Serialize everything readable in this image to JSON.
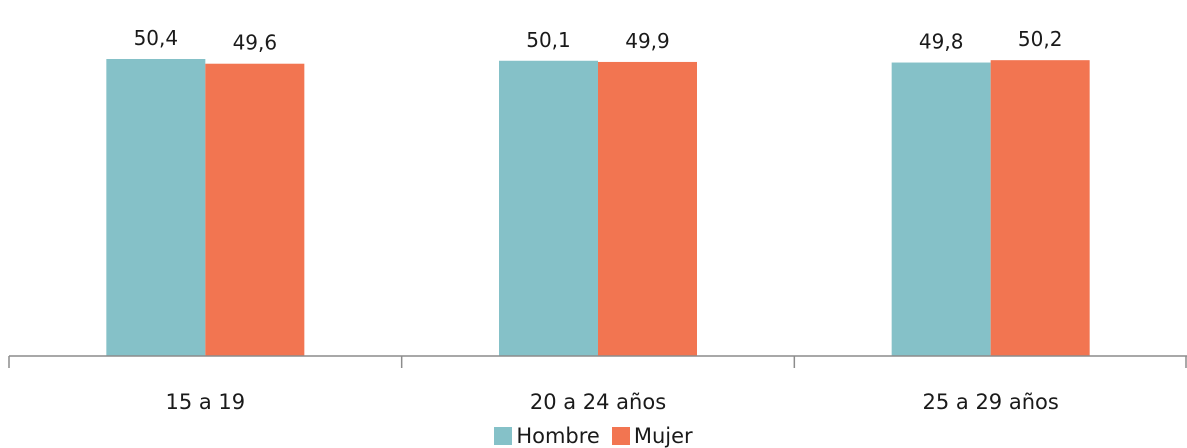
{
  "chart_data": {
    "type": "bar",
    "title": "",
    "xlabel": "",
    "ylabel": "",
    "categories": [
      "15 a 19",
      "20 a 24 años",
      "25 a 29 años"
    ],
    "series": [
      {
        "name": "Hombre",
        "values": [
          50.4,
          50.1,
          49.8
        ],
        "labels": [
          "50,4",
          "50,1",
          "49,8"
        ],
        "color": "#85C1C8"
      },
      {
        "name": "Mujer",
        "values": [
          49.6,
          49.9,
          50.2
        ],
        "labels": [
          "49,6",
          "49,9",
          "50,2"
        ],
        "color": "#F27551"
      }
    ],
    "ylim": [
      0,
      50.4
    ],
    "grid": false,
    "legend_position": "bottom"
  }
}
